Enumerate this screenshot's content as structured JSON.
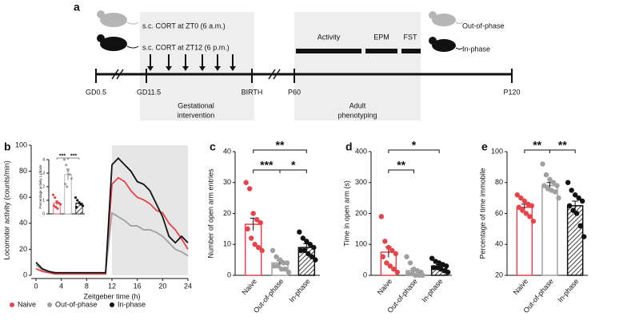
{
  "diagram": {
    "label": "a",
    "treatments": [
      {
        "text": "s.c. CORT at ZT0 (6 a.m.)",
        "color": "#a0a0a0"
      },
      {
        "text": "s.c. CORT at ZT12 (6 p.m.)",
        "color": "#111111"
      }
    ],
    "groups": [
      {
        "text": "Out-of-phase",
        "color": "#a0a0a0"
      },
      {
        "text": "In-phase",
        "color": "#111111"
      }
    ],
    "tests": [
      "Activity",
      "EPM",
      "FST"
    ],
    "timeline": [
      "GD0.5",
      "GD11.5",
      "BIRTH",
      "P60",
      "P120"
    ],
    "periods": [
      [
        "Gestational",
        "intervention"
      ],
      [
        "Adult",
        "phenotyping"
      ]
    ]
  },
  "chart_data": [
    {
      "type": "line",
      "panel": "b",
      "xlabel": "Zeitgeber time (h)",
      "ylabel": "Locomotor activity (counts/min)",
      "x": [
        0,
        1,
        2,
        3,
        4,
        5,
        6,
        7,
        8,
        9,
        10,
        11,
        12,
        13,
        14,
        15,
        16,
        17,
        18,
        19,
        20,
        21,
        22,
        23,
        24
      ],
      "shaded_x": [
        12,
        24
      ],
      "series": [
        {
          "name": "Naive",
          "color": "#e8434b",
          "values": [
            5,
            3,
            2,
            1,
            1,
            1,
            1,
            1,
            1,
            1,
            1,
            1,
            70,
            75,
            72,
            65,
            60,
            58,
            55,
            50,
            48,
            40,
            35,
            28,
            20
          ]
        },
        {
          "name": "Out-of-phase",
          "color": "#a0a0a0",
          "values": [
            8,
            4,
            3,
            2,
            2,
            2,
            2,
            2,
            2,
            2,
            2,
            2,
            48,
            45,
            42,
            38,
            38,
            35,
            35,
            33,
            30,
            25,
            20,
            18,
            15
          ]
        },
        {
          "name": "In-phase",
          "color": "#111111",
          "values": [
            10,
            5,
            3,
            2,
            2,
            2,
            2,
            2,
            2,
            2,
            2,
            2,
            85,
            90,
            85,
            80,
            72,
            70,
            65,
            55,
            45,
            30,
            25,
            30,
            25
          ]
        }
      ],
      "xlim": [
        0,
        24
      ],
      "xticks": [
        0,
        4,
        8,
        12,
        16,
        20,
        24
      ],
      "ylim": [
        0,
        100
      ],
      "yticks": [
        0,
        20,
        40,
        60,
        80,
        100
      ]
    },
    {
      "type": "bar",
      "ylabel": "Percentage activity L phase",
      "categories": [
        null,
        null,
        null
      ],
      "values": [
        0.8,
        2.9,
        0.8
      ],
      "errors": [
        0.15,
        0.4,
        0.12
      ],
      "points": [
        [
          1.4,
          1.2,
          0.9,
          0.8,
          0.7,
          0.6,
          0.5,
          0.4
        ],
        [
          4.0,
          3.6,
          3.2,
          2.9,
          2.6,
          2.2,
          2.0
        ],
        [
          1.2,
          1.0,
          0.8,
          0.7,
          0.6,
          0.5
        ]
      ],
      "colors": [
        "#e8434b",
        "#a0a0a0",
        "#111111"
      ],
      "hatch": [
        false,
        false,
        true
      ],
      "annotations": [
        {
          "text": "***",
          "between": [
            0,
            1
          ]
        },
        {
          "text": "***",
          "between": [
            1,
            2
          ]
        }
      ],
      "ylim": [
        0,
        4
      ],
      "yticks": [
        0,
        1,
        2,
        3,
        4
      ]
    },
    {
      "type": "bar",
      "panel": "c",
      "ylabel": "Number of open arm entries",
      "categories": [
        "Naive",
        "Out-of-phase",
        "In-phase"
      ],
      "values": [
        16.5,
        4,
        9
      ],
      "errors": [
        2,
        0.8,
        1.2
      ],
      "points": [
        [
          30,
          28,
          20,
          18,
          17,
          15,
          12,
          10,
          9,
          8
        ],
        [
          8,
          6,
          5,
          4,
          4,
          3,
          3,
          2,
          2,
          1
        ],
        [
          14,
          12,
          11,
          10,
          9,
          8,
          8,
          7,
          6,
          5
        ]
      ],
      "colors": [
        "#e8434b",
        "#a0a0a0",
        "#111111"
      ],
      "hatch": [
        false,
        false,
        true
      ],
      "annotations": [
        {
          "text": "**",
          "between": [
            0,
            2
          ]
        },
        {
          "text": "***",
          "between": [
            0,
            1
          ]
        },
        {
          "text": "*",
          "between": [
            1,
            2
          ]
        }
      ],
      "ylim": [
        0,
        40
      ],
      "yticks": [
        0,
        10,
        20,
        30,
        40
      ]
    },
    {
      "type": "bar",
      "panel": "d",
      "ylabel": "Time in open arm (s)",
      "categories": [
        "Naive",
        "Out-of-phase",
        "In-phase"
      ],
      "values": [
        75,
        15,
        30
      ],
      "errors": [
        17,
        6,
        5
      ],
      "points": [
        [
          190,
          110,
          90,
          80,
          70,
          60,
          40,
          30,
          20,
          10
        ],
        [
          60,
          40,
          20,
          15,
          10,
          5,
          5,
          0,
          0,
          0
        ],
        [
          55,
          45,
          40,
          35,
          30,
          25,
          25,
          20,
          15,
          10
        ]
      ],
      "colors": [
        "#e8434b",
        "#a0a0a0",
        "#111111"
      ],
      "hatch": [
        false,
        false,
        true
      ],
      "annotations": [
        {
          "text": "*",
          "between": [
            0,
            2
          ]
        },
        {
          "text": "**",
          "between": [
            0,
            1
          ]
        }
      ],
      "ylim": [
        0,
        400
      ],
      "yticks": [
        0,
        100,
        200,
        300,
        400
      ]
    },
    {
      "type": "bar",
      "panel": "e",
      "ylabel": "Percentage of time immobile",
      "categories": [
        "Naive",
        "Out-of-phase",
        "In-phase"
      ],
      "values": [
        64,
        78,
        65
      ],
      "errors": [
        2,
        2,
        3
      ],
      "points": [
        [
          72,
          70,
          68,
          66,
          65,
          64,
          62,
          60,
          58,
          55
        ],
        [
          92,
          85,
          82,
          80,
          78,
          78,
          76,
          75,
          74,
          70
        ],
        [
          80,
          75,
          72,
          70,
          68,
          65,
          62,
          60,
          52,
          45
        ]
      ],
      "colors": [
        "#e8434b",
        "#a0a0a0",
        "#111111"
      ],
      "hatch": [
        false,
        false,
        true
      ],
      "annotations": [
        {
          "text": "**",
          "between": [
            0,
            1
          ]
        },
        {
          "text": "**",
          "between": [
            1,
            2
          ]
        }
      ],
      "ylim": [
        20,
        100
      ],
      "yticks": [
        20,
        40,
        60,
        80,
        100
      ]
    }
  ]
}
